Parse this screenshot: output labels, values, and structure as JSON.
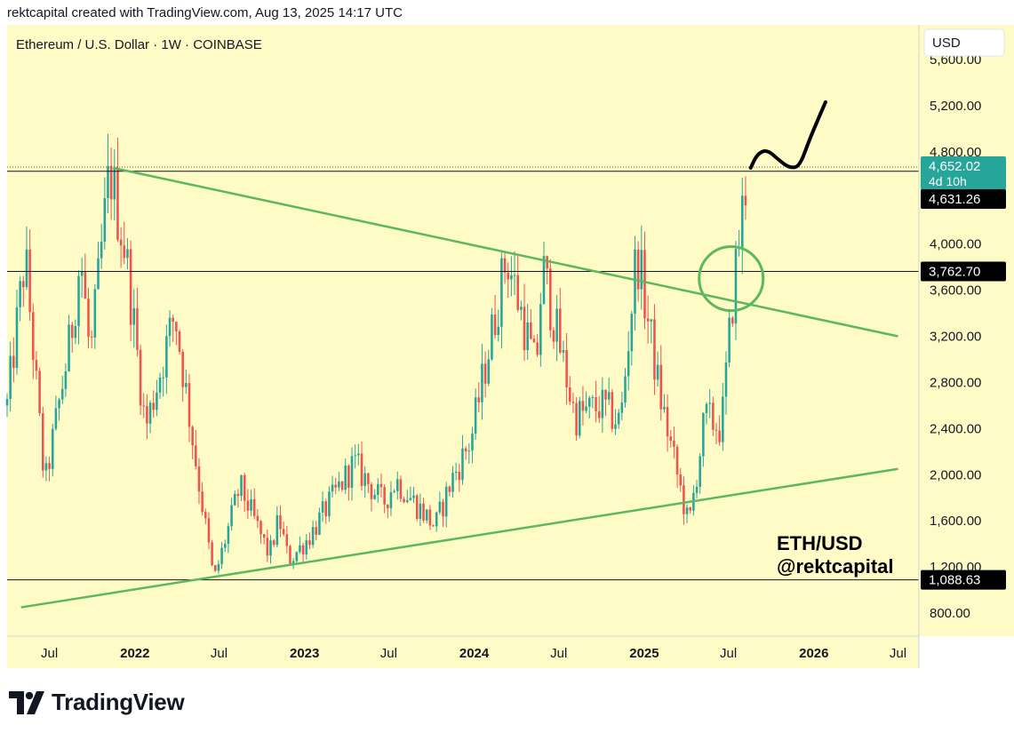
{
  "header": {
    "text": "rektcapital created with TradingView.com, Aug 13, 2025 14:17 UTC"
  },
  "chart": {
    "symbol_title": "Ethereum / U.S. Dollar · 1W · COINBASE",
    "currency_label": "USD",
    "watermark_line1": "ETH/USD",
    "watermark_line2": "@rektcapital",
    "price_badge": {
      "value": "4,652.02",
      "countdown": "4d 10h",
      "color": "#26a69a"
    },
    "level_badges": [
      {
        "value": "4,631.26",
        "price": 4631.26
      },
      {
        "value": "3,762.70",
        "price": 3762.7
      },
      {
        "value": "1,088.63",
        "price": 1088.63
      }
    ],
    "colors": {
      "background": "#fffbc6",
      "up": "#26a69a",
      "down": "#ef5350",
      "trendline": "#5cb85c",
      "level": "#131722"
    }
  },
  "chart_data": {
    "type": "candlestick",
    "title": "Ethereum / U.S. Dollar · 1W · COINBASE",
    "xlabel": "",
    "ylabel": "",
    "y_ticks": [
      "800.00",
      "1,200.00",
      "1,600.00",
      "2,000.00",
      "2,400.00",
      "2,800.00",
      "3,200.00",
      "3,600.00",
      "4,000.00",
      "4,800.00",
      "5,200.00",
      "5,600.00"
    ],
    "y_tick_values": [
      800,
      1200,
      1600,
      2000,
      2400,
      2800,
      3200,
      3600,
      4000,
      4800,
      5200,
      5600
    ],
    "x_ticks": [
      {
        "label": "Jul",
        "date": "2021-07-01",
        "bold": false
      },
      {
        "label": "2022",
        "date": "2022-01-01",
        "bold": true
      },
      {
        "label": "Jul",
        "date": "2022-07-01",
        "bold": false
      },
      {
        "label": "2023",
        "date": "2023-01-01",
        "bold": true
      },
      {
        "label": "Jul",
        "date": "2023-07-01",
        "bold": false
      },
      {
        "label": "2024",
        "date": "2024-01-01",
        "bold": true
      },
      {
        "label": "Jul",
        "date": "2024-07-01",
        "bold": false
      },
      {
        "label": "2025",
        "date": "2025-01-01",
        "bold": true
      },
      {
        "label": "Jul",
        "date": "2025-07-01",
        "bold": false
      },
      {
        "label": "2026",
        "date": "2026-01-01",
        "bold": true
      },
      {
        "label": "Jul",
        "date": "2026-07-01",
        "bold": false
      }
    ],
    "ylim": [
      600,
      5900
    ],
    "xlim": [
      "2021-04-01",
      "2026-08-15"
    ],
    "horizontal_lines": [
      4631.26,
      3762.7,
      1088.63
    ],
    "trendlines": [
      {
        "from": {
          "date": "2021-11-15",
          "price": 4660
        },
        "to": {
          "date": "2026-07-01",
          "price": 3200
        }
      },
      {
        "from": {
          "date": "2021-05-01",
          "price": 850
        },
        "to": {
          "date": "2026-07-01",
          "price": 2050
        }
      }
    ],
    "circle_annotation": {
      "date": "2025-07-07",
      "price": 3700
    },
    "projection": [
      [
        "2025-08-18",
        4660
      ],
      [
        "2025-09-01",
        4780
      ],
      [
        "2025-09-22",
        4820
      ],
      [
        "2025-10-20",
        4720
      ],
      [
        "2025-11-10",
        4660
      ],
      [
        "2025-12-01",
        4670
      ],
      [
        "2025-12-22",
        4900
      ],
      [
        "2026-01-12",
        5100
      ],
      [
        "2026-01-26",
        5230
      ]
    ],
    "anchors": [
      [
        "2021-04-01",
        2600
      ],
      [
        "2021-05-10",
        3900
      ],
      [
        "2021-06-21",
        1900
      ],
      [
        "2021-08-16",
        3200
      ],
      [
        "2021-09-06",
        3900
      ],
      [
        "2021-09-27",
        3000
      ],
      [
        "2021-11-08",
        4650
      ],
      [
        "2021-12-13",
        3900
      ],
      [
        "2022-01-24",
        2400
      ],
      [
        "2022-03-28",
        3400
      ],
      [
        "2022-05-16",
        2000
      ],
      [
        "2022-06-20",
        1080
      ],
      [
        "2022-08-15",
        1900
      ],
      [
        "2022-10-17",
        1300
      ],
      [
        "2022-11-07",
        1620
      ],
      [
        "2022-11-28",
        1250
      ],
      [
        "2023-01-09",
        1450
      ],
      [
        "2023-04-17",
        2100
      ],
      [
        "2023-06-19",
        1750
      ],
      [
        "2023-07-17",
        1950
      ],
      [
        "2023-10-09",
        1550
      ],
      [
        "2023-11-13",
        1950
      ],
      [
        "2023-12-25",
        2300
      ],
      [
        "2024-03-11",
        3900
      ],
      [
        "2024-05-13",
        2900
      ],
      [
        "2024-05-27",
        3800
      ],
      [
        "2024-08-05",
        2500
      ],
      [
        "2024-09-30",
        2600
      ],
      [
        "2024-11-11",
        2450
      ],
      [
        "2024-12-16",
        3950
      ],
      [
        "2025-02-03",
        2700
      ],
      [
        "2025-03-10",
        2050
      ],
      [
        "2025-04-07",
        1550
      ],
      [
        "2025-05-12",
        2500
      ],
      [
        "2025-06-16",
        2400
      ],
      [
        "2025-07-14",
        3700
      ],
      [
        "2025-08-11",
        4650
      ]
    ]
  }
}
